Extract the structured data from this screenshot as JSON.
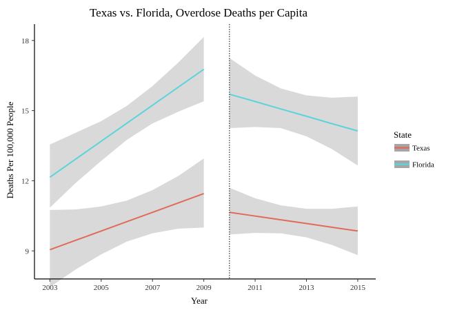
{
  "chart_data": {
    "type": "line",
    "title": "Texas vs. Florida, Overdose Deaths per Capita",
    "xlabel": "Year",
    "ylabel": "Deaths Per 100,000 People",
    "xlim": [
      2002.4,
      2015.7
    ],
    "ylim": [
      7.8,
      18.7
    ],
    "x_ticks": [
      2003,
      2005,
      2007,
      2009,
      2011,
      2013,
      2015
    ],
    "y_ticks": [
      9,
      12,
      15,
      18
    ],
    "grid": false,
    "vline": {
      "x": 2010,
      "style": "dotted"
    },
    "legend": {
      "title": "State",
      "placement": "right"
    },
    "ribbon_color": "#d9d9d9",
    "series": [
      {
        "name": "Texas",
        "color": "#e06b5a",
        "segments": [
          {
            "x": [
              2003,
              2004,
              2005,
              2006,
              2007,
              2008,
              2009
            ],
            "y": [
              9.05,
              9.45,
              9.85,
              10.25,
              10.65,
              11.05,
              11.45
            ],
            "lower": [
              7.45,
              8.2,
              8.85,
              9.4,
              9.75,
              9.95,
              10.0
            ],
            "upper": [
              10.75,
              10.77,
              10.9,
              11.15,
              11.6,
              12.2,
              12.95
            ]
          },
          {
            "x": [
              2010,
              2011,
              2012,
              2013,
              2014,
              2015
            ],
            "y": [
              10.65,
              10.49,
              10.33,
              10.17,
              10.01,
              9.85
            ],
            "lower": [
              9.7,
              9.77,
              9.75,
              9.58,
              9.25,
              8.82
            ],
            "upper": [
              11.7,
              11.25,
              10.95,
              10.8,
              10.8,
              10.9
            ]
          }
        ]
      },
      {
        "name": "Florida",
        "color": "#5bd3db",
        "segments": [
          {
            "x": [
              2003,
              2004,
              2005,
              2006,
              2007,
              2008,
              2009
            ],
            "y": [
              12.15,
              12.92,
              13.69,
              14.46,
              15.23,
              16.0,
              16.77
            ],
            "lower": [
              10.85,
              11.9,
              12.85,
              13.75,
              14.45,
              14.95,
              15.4
            ],
            "upper": [
              13.55,
              14.05,
              14.55,
              15.2,
              16.05,
              17.05,
              18.15
            ]
          },
          {
            "x": [
              2010,
              2011,
              2012,
              2013,
              2014,
              2015
            ],
            "y": [
              15.7,
              15.39,
              15.07,
              14.76,
              14.44,
              14.13
            ],
            "lower": [
              14.25,
              14.3,
              14.25,
              13.9,
              13.35,
              12.65
            ],
            "upper": [
              17.25,
              16.5,
              15.95,
              15.65,
              15.55,
              15.6
            ]
          }
        ]
      }
    ]
  }
}
